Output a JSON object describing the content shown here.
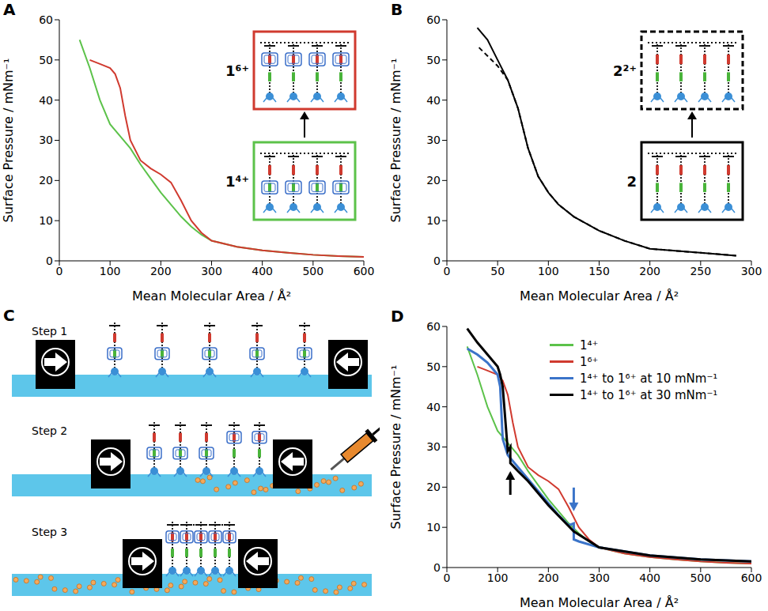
{
  "chart_data": [
    {
      "panel": "A",
      "type": "line",
      "x_label": "Mean Molecular Area / Å²",
      "y_label": "Surface Pressure / mNm⁻¹",
      "xlim": [
        0,
        600
      ],
      "xticks": [
        0,
        100,
        200,
        300,
        400,
        500,
        600
      ],
      "ylim": [
        0,
        60
      ],
      "yticks": [
        0,
        10,
        20,
        30,
        40,
        50,
        60
      ],
      "grid": false,
      "series": [
        {
          "name": "1⁴⁺",
          "color": "#5cc24a",
          "line_style": "solid",
          "x": [
            600,
            550,
            500,
            450,
            400,
            350,
            300,
            280,
            260,
            240,
            220,
            200,
            180,
            160,
            140,
            120,
            100,
            80,
            60,
            40
          ],
          "values": [
            1.0,
            1.2,
            1.5,
            2.0,
            2.6,
            3.5,
            5.0,
            6.5,
            8.5,
            11,
            14,
            17,
            20.5,
            24,
            28,
            31,
            34,
            40,
            48,
            55
          ]
        },
        {
          "name": "1⁶⁺",
          "color": "#d03a2f",
          "line_style": "solid",
          "x": [
            600,
            550,
            500,
            450,
            400,
            350,
            300,
            280,
            260,
            240,
            220,
            200,
            180,
            160,
            140,
            130,
            120,
            110,
            100,
            80,
            60
          ],
          "values": [
            1.0,
            1.2,
            1.5,
            2.0,
            2.6,
            3.5,
            5.0,
            7.0,
            10,
            15,
            19.5,
            21.5,
            23,
            25,
            30,
            36,
            43,
            46.5,
            48,
            49,
            50
          ]
        }
      ]
    },
    {
      "panel": "B",
      "type": "line",
      "x_label": "Mean Molecular Area / Å²",
      "y_label": "Surface Pressure / mNm⁻¹",
      "xlim": [
        0,
        300
      ],
      "xticks": [
        0,
        50,
        100,
        150,
        200,
        250,
        300
      ],
      "ylim": [
        0,
        60
      ],
      "yticks": [
        0,
        10,
        20,
        30,
        40,
        50,
        60
      ],
      "grid": false,
      "series": [
        {
          "name": "2",
          "color": "#000000",
          "line_style": "solid",
          "x": [
            285,
            250,
            200,
            175,
            150,
            125,
            110,
            100,
            90,
            80,
            75,
            70,
            60,
            50,
            40,
            30
          ],
          "values": [
            1.3,
            2,
            3,
            5,
            7.5,
            11,
            14,
            17,
            21,
            28,
            33,
            38,
            45,
            50,
            55,
            58
          ]
        },
        {
          "name": "2²⁺",
          "color": "#000000",
          "line_style": "dashed",
          "x": [
            285,
            250,
            200,
            175,
            150,
            125,
            110,
            100,
            90,
            80,
            75,
            70,
            60,
            50,
            40,
            30
          ],
          "values": [
            1.3,
            2,
            3,
            5,
            7.5,
            11,
            14,
            17,
            21,
            28,
            33,
            38,
            45,
            48.5,
            51,
            53.5
          ]
        }
      ]
    },
    {
      "panel": "D",
      "type": "line",
      "x_label": "Mean Molecular Area / Å²",
      "y_label": "Surface Pressure / mNm⁻¹",
      "xlim": [
        0,
        600
      ],
      "xticks": [
        0,
        100,
        200,
        300,
        400,
        500,
        600
      ],
      "ylim": [
        0,
        60
      ],
      "yticks": [
        0,
        10,
        20,
        30,
        40,
        50,
        60
      ],
      "grid": false,
      "legend": "upper right",
      "series": [
        {
          "name": "1⁴⁺",
          "color": "#5cc24a",
          "line_style": "solid",
          "x": [
            600,
            550,
            500,
            450,
            400,
            350,
            300,
            280,
            260,
            240,
            220,
            200,
            180,
            160,
            140,
            120,
            100,
            80,
            60,
            40
          ],
          "values": [
            1.0,
            1.2,
            1.5,
            2.0,
            2.6,
            3.5,
            5.0,
            6.5,
            8.5,
            11,
            14,
            17,
            20.5,
            24,
            28,
            31,
            34,
            40,
            48,
            55
          ]
        },
        {
          "name": "1⁶⁺",
          "color": "#d03a2f",
          "line_style": "solid",
          "x": [
            600,
            550,
            500,
            450,
            400,
            350,
            300,
            280,
            260,
            240,
            220,
            200,
            180,
            160,
            140,
            130,
            120,
            110,
            100,
            80,
            60
          ],
          "values": [
            1.0,
            1.2,
            1.5,
            2.0,
            2.6,
            3.5,
            5.0,
            7.0,
            10,
            15,
            19.5,
            21.5,
            23,
            25,
            30,
            36,
            43,
            46.5,
            48,
            49,
            50
          ]
        },
        {
          "name": "1⁴⁺ to 1⁶⁺ at 10 mNm⁻¹",
          "color": "#3b74c9",
          "line_style": "solid",
          "x": [
            600,
            500,
            400,
            300,
            260,
            250,
            250,
            240,
            220,
            200,
            180,
            160,
            140,
            120,
            110,
            105,
            100,
            80,
            60,
            40
          ],
          "values": [
            1.5,
            2,
            3,
            5,
            6.5,
            7,
            11,
            10.5,
            13,
            16,
            19,
            22,
            25,
            28,
            32,
            45,
            48,
            51,
            53,
            54.5
          ]
        },
        {
          "name": "1⁴⁺ to 1⁶⁺ at 30 mNm⁻¹",
          "color": "#000000",
          "line_style": "solid",
          "x": [
            600,
            500,
            400,
            300,
            250,
            200,
            160,
            140,
            125,
            125,
            120,
            110,
            105,
            100,
            80,
            60,
            40
          ],
          "values": [
            1.5,
            2,
            3,
            5,
            9,
            15.5,
            21.5,
            24,
            26,
            30,
            29,
            45,
            48,
            50,
            53,
            56,
            59.5
          ]
        }
      ],
      "arrows": [
        {
          "x": 125,
          "y": 24,
          "direction": "up",
          "color": "#000000"
        },
        {
          "x": 250,
          "y": 14,
          "direction": "down",
          "color": "#3b74c9"
        }
      ]
    }
  ],
  "diagram": {
    "panel": "C",
    "steps": [
      "Step 1",
      "Step 2",
      "Step 3"
    ]
  }
}
